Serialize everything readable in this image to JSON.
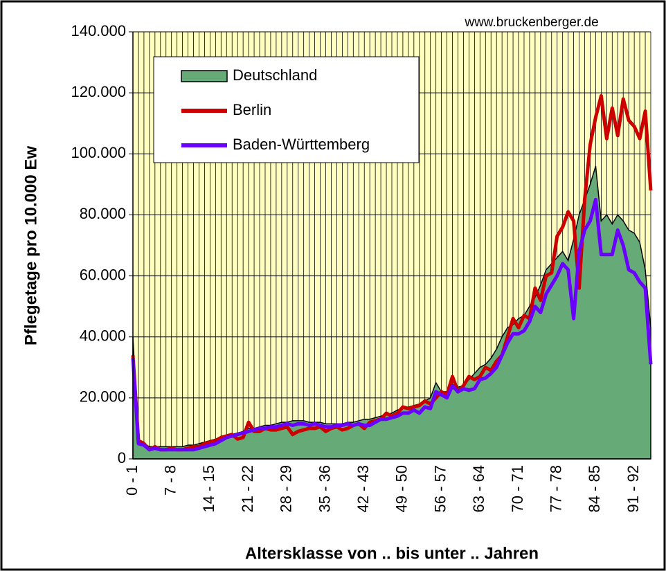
{
  "chart_data": {
    "type": "line",
    "source": "www.bruckenberger.de",
    "ylabel": "Pflegetage pro 10.000 Ew",
    "xlabel": "Altersklasse von .. bis unter .. Jahren",
    "categories": [
      "0 - 1",
      null,
      null,
      null,
      null,
      null,
      null,
      "7 - 8",
      null,
      null,
      null,
      null,
      null,
      null,
      "14 - 15",
      null,
      null,
      null,
      null,
      null,
      null,
      "21 - 22",
      null,
      null,
      null,
      null,
      null,
      null,
      "28 - 29",
      null,
      null,
      null,
      null,
      null,
      null,
      "35 - 36",
      null,
      null,
      null,
      null,
      null,
      null,
      "42 - 43",
      null,
      null,
      null,
      null,
      null,
      null,
      "49 - 50",
      null,
      null,
      null,
      null,
      null,
      null,
      "56 - 57",
      null,
      null,
      null,
      null,
      null,
      null,
      "63 - 64",
      null,
      null,
      null,
      null,
      null,
      null,
      "70 - 71",
      null,
      null,
      null,
      null,
      null,
      null,
      "77 - 78",
      null,
      null,
      null,
      null,
      null,
      null,
      "84 - 85",
      null,
      null,
      null,
      null,
      null,
      null,
      "91 - 92",
      null,
      null,
      null
    ],
    "ylim": [
      0,
      140000
    ],
    "yticks": [
      0,
      {
        "value": 20000,
        "label": "20.000"
      },
      {
        "value": 40000,
        "label": "40.000"
      },
      {
        "value": 60000,
        "label": "60.000"
      },
      {
        "value": 80000,
        "label": "80.000"
      },
      {
        "value": 100000,
        "label": "100.000"
      },
      {
        "value": 120000,
        "label": "120.000"
      },
      {
        "value": 140000,
        "label": "140.000"
      }
    ],
    "grid": true,
    "background": "#ffffc0",
    "legend": "top-left",
    "series": [
      {
        "name": "Deutschland",
        "type": "area",
        "color": "#66aa77",
        "values": [
          40000,
          6000,
          5000,
          4000,
          4000,
          4000,
          4000,
          4000,
          4000,
          4000,
          4500,
          4500,
          5000,
          5500,
          6000,
          6500,
          7000,
          7500,
          8000,
          8500,
          9000,
          10000,
          10000,
          10500,
          11000,
          11000,
          11500,
          12000,
          12000,
          12500,
          12500,
          12500,
          12000,
          12000,
          12000,
          11500,
          11500,
          11500,
          11500,
          12000,
          12000,
          12500,
          13000,
          13000,
          13500,
          14000,
          14500,
          15000,
          16000,
          16500,
          17000,
          17500,
          18000,
          19000,
          20000,
          25000,
          22000,
          22000,
          23000,
          23500,
          24000,
          26000,
          28000,
          30000,
          31000,
          33000,
          36000,
          40000,
          43000,
          44000,
          46000,
          47000,
          50000,
          53000,
          57000,
          62000,
          64000,
          66000,
          68000,
          65000,
          72000,
          80000,
          85000,
          90000,
          96000,
          78000,
          80000,
          77000,
          80000,
          78000,
          75000,
          74000,
          71000,
          62000,
          43000
        ]
      },
      {
        "name": "Berlin",
        "type": "line",
        "color": "#cc0000",
        "values": [
          34000,
          6000,
          5000,
          3000,
          4000,
          3000,
          3000,
          3500,
          3000,
          3000,
          3500,
          4000,
          4000,
          5000,
          5500,
          6000,
          7000,
          7500,
          8000,
          6500,
          7000,
          12000,
          9000,
          9000,
          10000,
          9500,
          9500,
          10000,
          10500,
          8000,
          9000,
          9500,
          10000,
          10000,
          10500,
          9000,
          10000,
          10500,
          9500,
          10000,
          11000,
          11500,
          10000,
          12000,
          12500,
          13000,
          15000,
          14000,
          15000,
          17000,
          16500,
          17000,
          17500,
          19000,
          18000,
          20000,
          22000,
          21000,
          27000,
          22000,
          24000,
          27000,
          26000,
          27000,
          30000,
          29000,
          32000,
          34000,
          40000,
          46000,
          43000,
          47000,
          46000,
          56000,
          52000,
          60000,
          61000,
          73000,
          76000,
          81000,
          78000,
          56000,
          85000,
          103000,
          112000,
          119000,
          105000,
          115000,
          106000,
          118000,
          111000,
          109000,
          105000,
          114000,
          88000
        ]
      },
      {
        "name": "Baden-Württemberg",
        "type": "line",
        "color": "#6a00ff",
        "values": [
          33000,
          5000,
          4500,
          3000,
          3500,
          3000,
          3000,
          3000,
          3000,
          3000,
          3000,
          3000,
          3500,
          4000,
          4500,
          5000,
          6000,
          7000,
          7500,
          8000,
          8500,
          9000,
          9500,
          10000,
          10000,
          10500,
          10500,
          11000,
          11500,
          11000,
          11500,
          11500,
          11000,
          11500,
          11000,
          10500,
          10500,
          11000,
          11000,
          11500,
          11000,
          11500,
          11000,
          11000,
          12000,
          13000,
          13000,
          13500,
          14000,
          15000,
          15000,
          16000,
          15000,
          17000,
          16500,
          22000,
          21000,
          20000,
          24000,
          22000,
          23000,
          22500,
          23000,
          26000,
          26500,
          28000,
          30000,
          34000,
          38000,
          41000,
          41000,
          42000,
          45000,
          50000,
          48000,
          54000,
          57000,
          60000,
          64000,
          62000,
          46000,
          68000,
          75000,
          78000,
          85000,
          67000,
          67000,
          67000,
          75000,
          70000,
          62000,
          61000,
          58000,
          56000,
          31000
        ]
      }
    ]
  }
}
